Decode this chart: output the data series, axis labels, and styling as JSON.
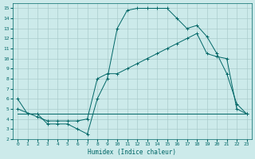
{
  "xlabel": "Humidex (Indice chaleur)",
  "bg_color": "#cceaea",
  "grid_color": "#aacccc",
  "line_color": "#006666",
  "xlim": [
    -0.5,
    23.5
  ],
  "ylim": [
    2,
    15.5
  ],
  "xticks": [
    0,
    1,
    2,
    3,
    4,
    5,
    6,
    7,
    8,
    9,
    10,
    11,
    12,
    13,
    14,
    15,
    16,
    17,
    18,
    19,
    20,
    21,
    22,
    23
  ],
  "yticks": [
    2,
    3,
    4,
    5,
    6,
    7,
    8,
    9,
    10,
    11,
    12,
    13,
    14,
    15
  ],
  "curve1_x": [
    0,
    1,
    2,
    3,
    4,
    5,
    6,
    7,
    8,
    9,
    10,
    11,
    12,
    13,
    14,
    15,
    16,
    17,
    18,
    19,
    20,
    21,
    22,
    23
  ],
  "curve1_y": [
    6,
    4.5,
    4.5,
    3.5,
    3.5,
    3.5,
    3.0,
    2.5,
    6.0,
    8.0,
    13.0,
    14.8,
    15.0,
    15.0,
    15.0,
    15.0,
    14.0,
    13.0,
    13.3,
    12.2,
    10.5,
    8.5,
    5.5,
    4.5
  ],
  "curve2_x": [
    0,
    1,
    2,
    3,
    4,
    5,
    6,
    7,
    8,
    9,
    10,
    11,
    12,
    13,
    14,
    15,
    16,
    17,
    18,
    19,
    20,
    21,
    22,
    23
  ],
  "curve2_y": [
    4.5,
    4.5,
    4.5,
    4.5,
    4.5,
    4.5,
    4.5,
    4.5,
    4.5,
    4.5,
    4.5,
    4.5,
    4.5,
    4.5,
    4.5,
    4.5,
    4.5,
    4.5,
    4.5,
    4.5,
    4.5,
    4.5,
    4.5,
    4.5
  ],
  "curve3_x": [
    0,
    2,
    3,
    4,
    5,
    6,
    7,
    8,
    9,
    10,
    11,
    12,
    13,
    14,
    15,
    16,
    17,
    18,
    19,
    20,
    21,
    22,
    23
  ],
  "curve3_y": [
    5.0,
    4.2,
    3.8,
    3.8,
    3.8,
    3.8,
    4.0,
    8.0,
    8.5,
    8.5,
    9.0,
    9.5,
    10.0,
    10.5,
    11.0,
    11.5,
    12.0,
    12.5,
    10.5,
    10.2,
    10.0,
    5.0,
    4.5
  ]
}
